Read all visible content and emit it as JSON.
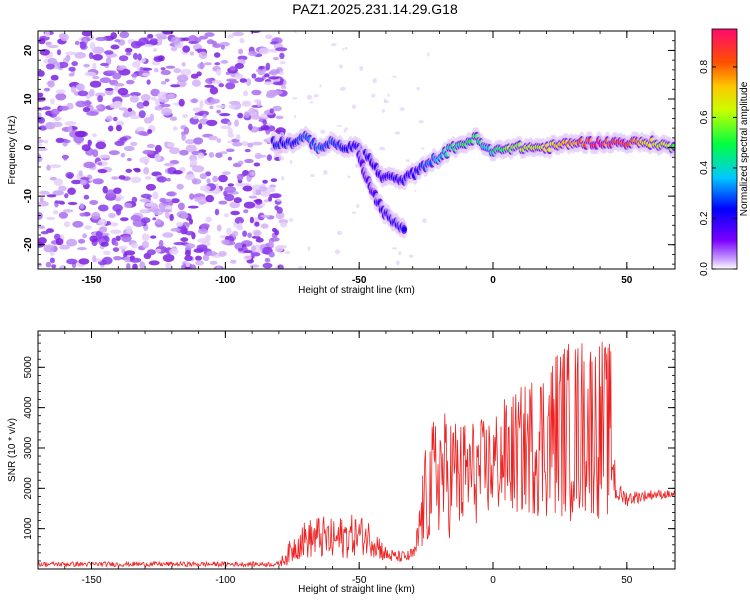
{
  "title": "PAZ1.2025.231.14.29.G18",
  "colors": {
    "axis": "#000000",
    "snr_line": "#ee2222",
    "spec_low": "#7a1fe0",
    "spec_light": "#d8b8f5"
  },
  "chart_data": [
    {
      "type": "heatmap",
      "name": "spectrogram",
      "xlabel": "Height of straight line (km)",
      "ylabel": "Frequency (Hz)",
      "xlim": [
        -170,
        68
      ],
      "ylim": [
        -25,
        24
      ],
      "xticks": [
        -150,
        -100,
        -50,
        0,
        50
      ],
      "yticks": [
        -20,
        -10,
        0,
        10,
        20
      ],
      "xtick_labels": [
        "-150",
        "-100",
        "-50",
        "0",
        "50"
      ],
      "ytick_labels": [
        "-20",
        "-10",
        "0",
        "10",
        "20"
      ],
      "ridge": {
        "x": [
          -82,
          -75,
          -70,
          -65,
          -60,
          -55,
          -50,
          -45,
          -42,
          -38,
          -35,
          -32,
          -28,
          -24,
          -20,
          -15,
          -10,
          -6,
          -3,
          0,
          5,
          10,
          20,
          30,
          40,
          50,
          60,
          68
        ],
        "freq": [
          1,
          1,
          2,
          0,
          1,
          0,
          0,
          -3,
          -6,
          -6,
          -7,
          -6,
          -5,
          -3,
          -2,
          0,
          1,
          2,
          0,
          -1,
          0,
          0,
          0,
          1,
          1,
          1,
          1,
          0
        ],
        "amplitude": [
          0.25,
          0.25,
          0.3,
          0.3,
          0.3,
          0.25,
          0.22,
          0.2,
          0.2,
          0.2,
          0.2,
          0.2,
          0.22,
          0.3,
          0.35,
          0.45,
          0.5,
          0.5,
          0.4,
          0.45,
          0.55,
          0.6,
          0.65,
          0.75,
          0.9,
          0.85,
          0.65,
          0.55
        ]
      },
      "branch": {
        "x": [
          -50,
          -47,
          -44,
          -41,
          -38,
          -35,
          -33
        ],
        "freq": [
          -2,
          -6,
          -10,
          -13,
          -15,
          -16,
          -17
        ],
        "amplitude": [
          0.15,
          0.15,
          0.18,
          0.2,
          0.22,
          0.25,
          0.22
        ]
      },
      "colorbar": {
        "label": "Normalized spectral amplitude",
        "range": [
          0,
          0.95
        ],
        "ticks": [
          0.0,
          0.2,
          0.4,
          0.6,
          0.8
        ],
        "tick_labels": [
          "0.0",
          "0.2",
          "0.4",
          "0.6",
          "0.8"
        ]
      }
    },
    {
      "type": "line",
      "name": "snr",
      "xlabel": "Height of straight line (km)",
      "ylabel": "SNR (10 * v/v)",
      "xlim": [
        -170,
        68
      ],
      "ylim": [
        0,
        5900
      ],
      "xticks": [
        -150,
        -100,
        -50,
        0,
        50
      ],
      "yticks": [
        1000,
        2000,
        3000,
        4000,
        5000
      ],
      "xtick_labels": [
        "-150",
        "-100",
        "-50",
        "0",
        "50"
      ],
      "ytick_labels": [
        "1000",
        "2000",
        "3000",
        "4000",
        "5000"
      ],
      "envelope": {
        "x": [
          -170,
          -80,
          -76,
          -72,
          -65,
          -60,
          -55,
          -50,
          -45,
          -40,
          -36,
          -32,
          -29,
          -27,
          -25,
          -22,
          -20,
          -17,
          -15,
          -12,
          -10,
          -5,
          0,
          5,
          10,
          15,
          20,
          25,
          30,
          35,
          40,
          44,
          46,
          50,
          55,
          60,
          68
        ],
        "center": [
          120,
          120,
          400,
          700,
          800,
          700,
          800,
          850,
          750,
          350,
          300,
          300,
          400,
          1200,
          1800,
          2200,
          2500,
          2200,
          2500,
          2200,
          2400,
          2400,
          2600,
          2800,
          2900,
          3100,
          3200,
          3500,
          3400,
          3600,
          3500,
          3400,
          1900,
          1750,
          1800,
          1850,
          1850
        ],
        "spread": [
          60,
          60,
          300,
          450,
          550,
          550,
          550,
          500,
          450,
          200,
          150,
          150,
          200,
          900,
          1300,
          1600,
          1700,
          1600,
          1500,
          1500,
          1400,
          1300,
          1300,
          1500,
          1600,
          1800,
          2000,
          2200,
          2300,
          2300,
          2300,
          2200,
          250,
          200,
          150,
          120,
          100
        ]
      }
    }
  ]
}
